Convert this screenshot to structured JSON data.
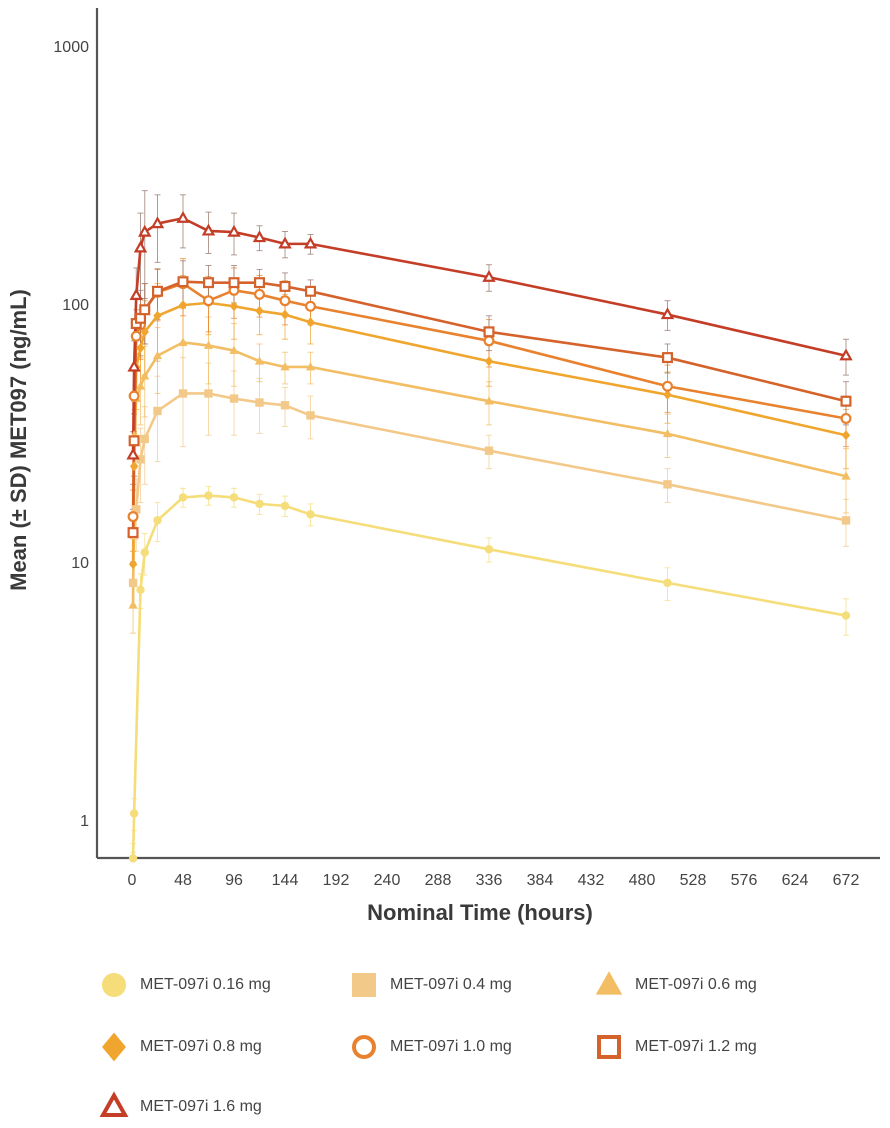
{
  "chart_data": {
    "type": "line",
    "title": "",
    "xlabel": "Nominal Time (hours)",
    "ylabel": "Mean (± SD) MET097 (ng/mL)",
    "yscale": "log",
    "ylim": [
      0.7,
      1300
    ],
    "xlim": [
      -30,
      700
    ],
    "x_ticks": [
      0,
      48,
      96,
      144,
      192,
      240,
      288,
      336,
      384,
      432,
      480,
      528,
      576,
      624,
      672
    ],
    "y_ticks": [
      1,
      10,
      100,
      1000
    ],
    "y_tick_labels": [
      "1",
      "10",
      "100",
      "1000"
    ],
    "grid": false,
    "legend_position": "bottom",
    "series": [
      {
        "name": "MET-097i 0.16 mg",
        "color": "#f5dd7a",
        "marker": "circle",
        "filled": true,
        "x": [
          1,
          2,
          8,
          12,
          24,
          48,
          72,
          96,
          120,
          144,
          168,
          336,
          504,
          672
        ],
        "y": [
          0.71,
          1.06,
          7.8,
          10.9,
          14.5,
          17.8,
          18.1,
          17.8,
          16.8,
          16.5,
          15.3,
          11.2,
          8.3,
          6.2
        ],
        "sd": [
          0.1,
          0.15,
          1.2,
          2.0,
          2.5,
          1.5,
          1.5,
          1.5,
          1.5,
          1.5,
          1.5,
          1.2,
          1.2,
          1.0
        ]
      },
      {
        "name": "MET-097i 0.4 mg",
        "color": "#f3c98a",
        "marker": "square",
        "filled": true,
        "x": [
          1,
          2,
          4,
          8,
          12,
          24,
          48,
          72,
          96,
          120,
          144,
          168,
          336,
          504,
          672
        ],
        "y": [
          8.3,
          12.7,
          16,
          25,
          30,
          38.5,
          45,
          45,
          43,
          41.5,
          40.5,
          37,
          27,
          20,
          14.5
        ],
        "sd": [
          1.5,
          3,
          5,
          8,
          10,
          14,
          17,
          14,
          12,
          10,
          7,
          7,
          4,
          3,
          3
        ]
      },
      {
        "name": "MET-097i 0.6 mg",
        "color": "#f2bd63",
        "marker": "triangle",
        "filled": true,
        "x": [
          1,
          2,
          4,
          8,
          12,
          24,
          48,
          72,
          96,
          120,
          144,
          168,
          336,
          504,
          672
        ],
        "y": [
          6.8,
          31,
          43,
          48,
          52.5,
          63,
          71,
          69,
          66,
          60,
          57,
          57,
          42,
          31.4,
          21.5
        ],
        "sd": [
          1.5,
          8,
          12,
          14,
          16,
          18,
          25,
          20,
          18,
          10,
          8,
          8,
          8,
          6,
          6
        ]
      },
      {
        "name": "MET-097i 0.8 mg",
        "color": "#f0a62e",
        "marker": "diamond",
        "filled": true,
        "x": [
          1,
          2,
          4,
          8,
          12,
          24,
          48,
          72,
          96,
          120,
          144,
          168,
          336,
          504,
          672
        ],
        "y": [
          9.8,
          23.5,
          57,
          67.5,
          78,
          90,
          99,
          101,
          98,
          94,
          91,
          85,
          60,
          44.5,
          31
        ],
        "sd": [
          3,
          8,
          18,
          20,
          25,
          30,
          30,
          25,
          25,
          18,
          18,
          15,
          12,
          10,
          8
        ]
      },
      {
        "name": "MET-097i 1.0 mg",
        "color": "#e8822e",
        "marker": "circle",
        "filled": false,
        "x": [
          1,
          2,
          4,
          8,
          12,
          24,
          48,
          72,
          96,
          120,
          144,
          168,
          336,
          504,
          672
        ],
        "y": [
          15,
          44,
          75,
          83,
          95,
          111,
          120,
          103,
          113,
          109,
          103,
          98,
          72,
          48,
          36
        ],
        "sd": [
          4,
          12,
          20,
          22,
          25,
          25,
          30,
          25,
          25,
          20,
          20,
          15,
          15,
          10,
          8
        ]
      },
      {
        "name": "MET-097i 1.2 mg",
        "color": "#d4622a",
        "marker": "square",
        "filled": false,
        "x": [
          1,
          2,
          4,
          8,
          12,
          24,
          48,
          72,
          96,
          120,
          144,
          168,
          336,
          504,
          672
        ],
        "y": [
          13,
          29.5,
          84,
          88,
          95,
          112,
          122,
          121,
          121,
          121,
          117,
          112,
          78,
          62,
          42
        ],
        "sd": [
          3,
          8,
          20,
          25,
          25,
          25,
          25,
          20,
          20,
          15,
          15,
          12,
          12,
          8,
          8
        ]
      },
      {
        "name": "MET-097i 1.6 mg",
        "color": "#c43d27",
        "marker": "triangle",
        "filled": false,
        "x": [
          1,
          2,
          4,
          8,
          12,
          24,
          48,
          72,
          96,
          120,
          144,
          168,
          336,
          504,
          672
        ],
        "y": [
          26,
          57,
          108,
          165,
          190,
          205,
          215,
          192,
          190,
          181,
          171,
          171,
          127,
          91,
          63
        ],
        "sd": [
          6,
          15,
          30,
          60,
          85,
          60,
          50,
          35,
          35,
          20,
          20,
          15,
          15,
          12,
          10
        ]
      }
    ]
  }
}
